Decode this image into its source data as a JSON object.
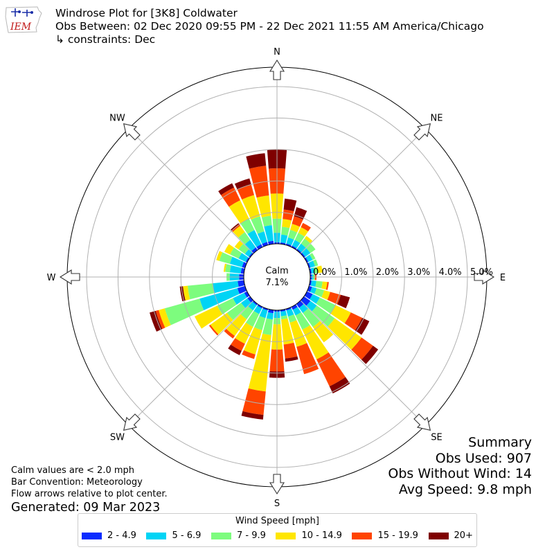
{
  "header": {
    "logo_text": "IEM",
    "title_line1": "Windrose Plot for [3K8] Coldwater",
    "title_line2": "Obs Between: 02 Dec 2020 09:55 PM - 22 Dec 2021 11:55 AM America/Chicago",
    "title_line3": "↳ constraints: Dec"
  },
  "notes": {
    "calm": "Calm values are < 2.0 mph",
    "bar_convention": "Bar Convention: Meteorology",
    "flow": "Flow arrows relative to plot center.",
    "generated": "Generated: 09 Mar 2023"
  },
  "summary": {
    "title": "Summary",
    "obs_used": "Obs Used: 907",
    "obs_without_wind": "Obs Without Wind: 14",
    "avg_speed": "Avg Speed: 9.8 mph"
  },
  "legend": {
    "title": "Wind Speed [mph]"
  },
  "chart_data": {
    "type": "windrose",
    "calm_label": "Calm",
    "calm_value": "7.1%",
    "radial_unit": "%",
    "radial_ticks": [
      "0.0%",
      "1.0%",
      "2.0%",
      "3.0%",
      "4.0%",
      "5.0%"
    ],
    "r_range": [
      0,
      5
    ],
    "grid": true,
    "legend_position": "bottom",
    "directions": [
      "N",
      "NE",
      "E",
      "SE",
      "S",
      "SW",
      "W",
      "NW"
    ],
    "sector_directions_deg": [
      0,
      10,
      20,
      30,
      40,
      50,
      60,
      70,
      80,
      90,
      100,
      110,
      120,
      130,
      140,
      150,
      160,
      170,
      180,
      190,
      200,
      210,
      220,
      230,
      240,
      250,
      260,
      270,
      280,
      290,
      300,
      310,
      320,
      330,
      340,
      350
    ],
    "bins": [
      {
        "label": "2 - 4.9",
        "color": "#0a2cff"
      },
      {
        "label": "5 - 6.9",
        "color": "#00d4f5"
      },
      {
        "label": "7 - 9.9",
        "color": "#7dfc7e"
      },
      {
        "label": "10 - 14.9",
        "color": "#ffe600"
      },
      {
        "label": "15 - 19.9",
        "color": "#ff4400"
      },
      {
        "label": "20+",
        "color": "#7f0000"
      }
    ],
    "cumulative_percent": [
      [
        0.05,
        0.35,
        0.8,
        1.6,
        2.4,
        3.0
      ],
      [
        0.05,
        0.3,
        0.55,
        0.8,
        1.1,
        1.45
      ],
      [
        0.05,
        0.25,
        0.5,
        0.7,
        0.95,
        1.25
      ],
      [
        0.05,
        0.25,
        0.5,
        0.7,
        0.85,
        0.85
      ],
      [
        0.05,
        0.25,
        0.45,
        0.55,
        0.55,
        0.55
      ],
      [
        0.05,
        0.25,
        0.45,
        0.45,
        0.45,
        0.45
      ],
      [
        0.05,
        0.2,
        0.3,
        0.3,
        0.3,
        0.3
      ],
      [
        0.05,
        0.2,
        0.3,
        0.3,
        0.3,
        0.3
      ],
      [
        0.05,
        0.15,
        0.25,
        0.4,
        0.4,
        0.4
      ],
      [
        0.05,
        0.1,
        0.15,
        0.15,
        0.2,
        0.2
      ],
      [
        0.05,
        0.2,
        0.4,
        0.55,
        0.6,
        0.6
      ],
      [
        0.1,
        0.25,
        0.5,
        0.7,
        1.05,
        1.35
      ],
      [
        0.2,
        0.45,
        1.0,
        1.55,
        1.95,
        2.2
      ],
      [
        0.25,
        0.5,
        1.2,
        2.25,
        2.7,
        2.9
      ],
      [
        0.15,
        0.35,
        0.9,
        1.5,
        1.5,
        1.5
      ],
      [
        0.1,
        0.3,
        0.8,
        1.85,
        2.8,
        3.05
      ],
      [
        0.05,
        0.25,
        0.45,
        1.25,
        2.15,
        2.15
      ],
      [
        0.05,
        0.2,
        0.3,
        1.1,
        1.55,
        1.65
      ],
      [
        0.05,
        0.25,
        0.45,
        1.25,
        1.95,
        2.15
      ],
      [
        0.1,
        0.3,
        0.8,
        2.6,
        3.35,
        3.5
      ],
      [
        0.05,
        0.3,
        0.7,
        1.5,
        1.65,
        1.65
      ],
      [
        0.05,
        0.25,
        0.7,
        1.3,
        1.55,
        1.7
      ],
      [
        0.05,
        0.25,
        0.6,
        1.25,
        1.35,
        1.35
      ],
      [
        0.1,
        0.35,
        0.9,
        1.55,
        1.6,
        1.6
      ],
      [
        0.1,
        0.5,
        1.05,
        1.85,
        1.85,
        1.85
      ],
      [
        0.25,
        1.5,
        2.65,
        2.85,
        2.95,
        3.15
      ],
      [
        0.2,
        1.0,
        1.8,
        1.95,
        1.95,
        2.05
      ],
      [
        0.15,
        0.45,
        0.55,
        0.55,
        0.55,
        0.55
      ],
      [
        0.1,
        0.45,
        0.6,
        0.65,
        0.65,
        0.65
      ],
      [
        0.1,
        0.5,
        0.85,
        0.95,
        0.95,
        0.95
      ],
      [
        0.05,
        0.3,
        0.6,
        0.8,
        0.8,
        0.8
      ],
      [
        0.05,
        0.2,
        0.45,
        0.6,
        0.6,
        0.6
      ],
      [
        0.1,
        0.4,
        0.7,
        0.95,
        1.0,
        1.05
      ],
      [
        0.1,
        0.6,
        1.0,
        1.65,
        2.1,
        2.25
      ],
      [
        0.1,
        0.45,
        0.95,
        1.65,
        2.0,
        2.2
      ],
      [
        0.1,
        0.6,
        0.9,
        1.55,
        2.5,
        2.9
      ]
    ]
  }
}
